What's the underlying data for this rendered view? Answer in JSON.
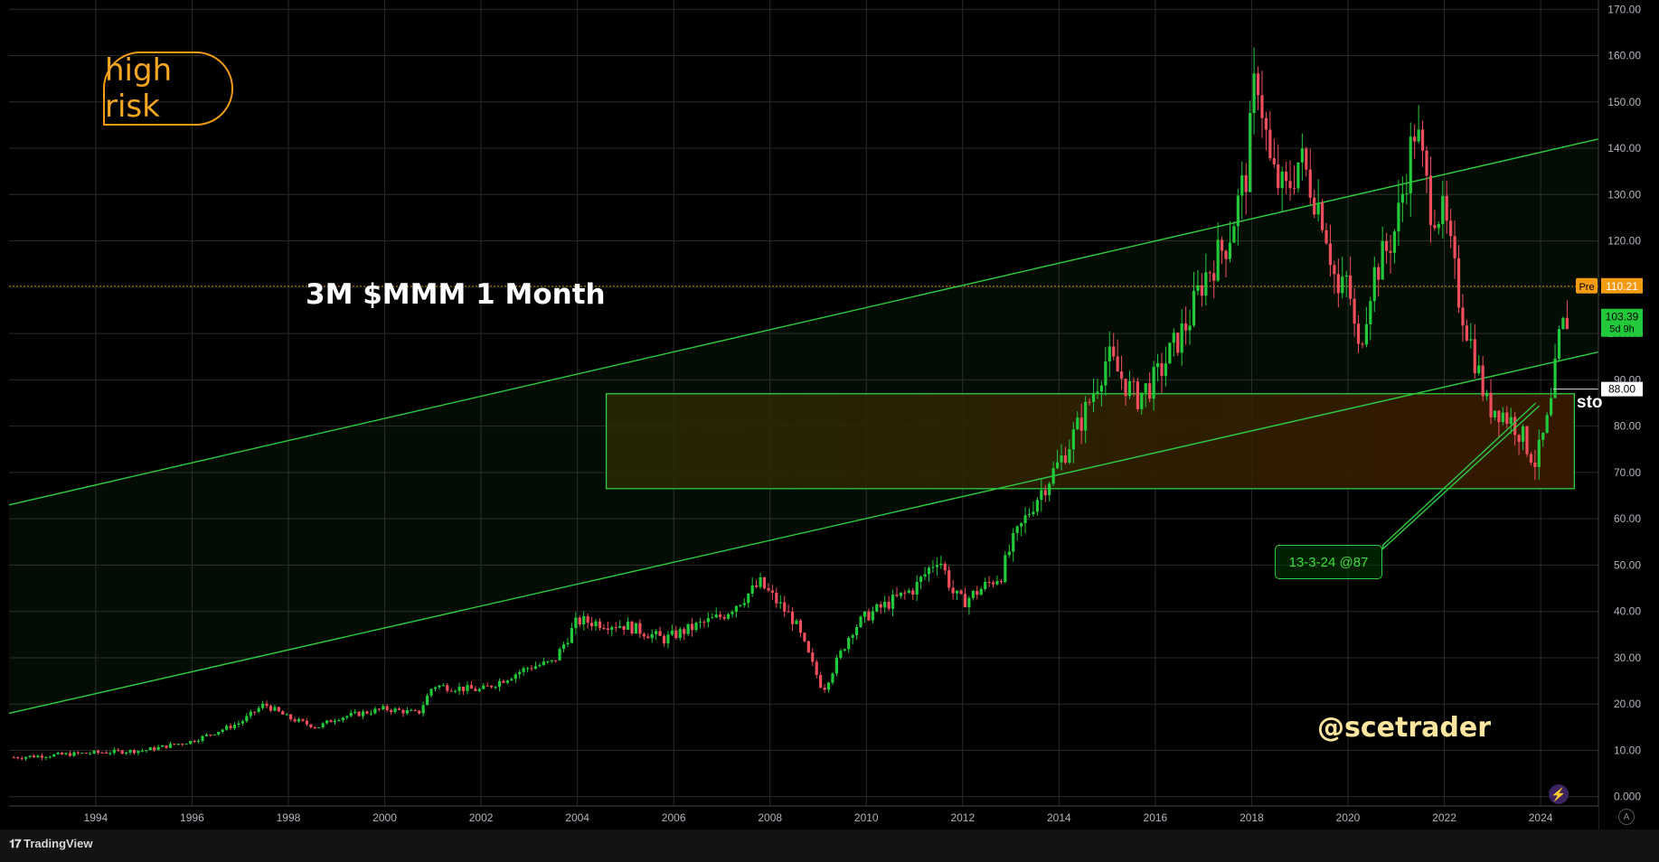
{
  "risk_badge": "high risk",
  "title": "3M $MMM 1 Month",
  "watermark": "@scetrader",
  "callout": "13-3-24 @87",
  "cut_label": "sto",
  "branding": "TradingView",
  "auto_button": "A",
  "colors": {
    "up": "#22c93a",
    "down": "#ef4f5c",
    "channel": "#2ecc40",
    "zone": "#3a3a00",
    "price_line": "#f39c12"
  },
  "chart_data": {
    "type": "candlestick",
    "title": "3M $MMM 1 Month",
    "xlabel": "",
    "ylabel": "",
    "xlim": [
      1992.2,
      2025.2
    ],
    "ylim": [
      -2,
      172
    ],
    "grid": true,
    "x_ticks": [
      "1994",
      "1996",
      "1998",
      "2000",
      "2002",
      "2004",
      "2006",
      "2008",
      "2010",
      "2012",
      "2014",
      "2016",
      "2018",
      "2020",
      "2022",
      "2024"
    ],
    "y_ticks": [
      "170.00",
      "160.00",
      "150.00",
      "140.00",
      "130.00",
      "120.00",
      "110.00",
      "100.00",
      "90.00",
      "80.00",
      "70.00",
      "60.00",
      "50.00",
      "40.00",
      "30.00",
      "20.00",
      "10.00",
      "0.000"
    ],
    "price_path": [
      [
        1992.3,
        8.5
      ],
      [
        1994,
        9.5
      ],
      [
        1995,
        10
      ],
      [
        1996,
        12
      ],
      [
        1997,
        16
      ],
      [
        1997.5,
        20
      ],
      [
        1998,
        17
      ],
      [
        1998.6,
        15
      ],
      [
        1999,
        17
      ],
      [
        2000,
        19
      ],
      [
        2000.7,
        18
      ],
      [
        2001,
        24
      ],
      [
        2002,
        23
      ],
      [
        2003,
        28
      ],
      [
        2003.5,
        29
      ],
      [
        2004,
        38
      ],
      [
        2005,
        37
      ],
      [
        2005.8,
        34
      ],
      [
        2006.5,
        37
      ],
      [
        2007,
        39
      ],
      [
        2007.8,
        46
      ],
      [
        2008.5,
        38
      ],
      [
        2009.1,
        23
      ],
      [
        2009.7,
        36
      ],
      [
        2010,
        39
      ],
      [
        2011,
        45
      ],
      [
        2011.5,
        52
      ],
      [
        2011.8,
        44
      ],
      [
        2012,
        42
      ],
      [
        2012.8,
        48
      ],
      [
        2013,
        54
      ],
      [
        2013.5,
        64
      ],
      [
        2014,
        72
      ],
      [
        2014.5,
        82
      ],
      [
        2015,
        95
      ],
      [
        2015.6,
        86
      ],
      [
        2016,
        90
      ],
      [
        2016.7,
        103
      ],
      [
        2017,
        112
      ],
      [
        2017.5,
        120
      ],
      [
        2017.9,
        135
      ],
      [
        2018.1,
        158
      ],
      [
        2018.4,
        135
      ],
      [
        2018.7,
        130
      ],
      [
        2019,
        138
      ],
      [
        2019.5,
        125
      ],
      [
        2019.8,
        108
      ],
      [
        2020,
        112
      ],
      [
        2020.2,
        95
      ],
      [
        2020.5,
        112
      ],
      [
        2020.8,
        118
      ],
      [
        2021,
        123
      ],
      [
        2021.4,
        145
      ],
      [
        2021.7,
        128
      ],
      [
        2022,
        125
      ],
      [
        2022.3,
        108
      ],
      [
        2022.7,
        92
      ],
      [
        2022.9,
        84
      ],
      [
        2023.1,
        84
      ],
      [
        2023.5,
        80
      ],
      [
        2023.9,
        72
      ],
      [
        2024.2,
        83
      ],
      [
        2024.4,
        100
      ],
      [
        2024.55,
        103
      ]
    ],
    "channel_upper": [
      [
        1992.2,
        63
      ],
      [
        2025.2,
        142
      ]
    ],
    "channel_lower": [
      [
        1992.2,
        18
      ],
      [
        2025.2,
        96
      ]
    ],
    "zone": {
      "x": [
        2004.6,
        2024.7
      ],
      "y": [
        66.5,
        87
      ]
    },
    "callout_target": [
      2023.9,
      85
    ],
    "price_labels": [
      {
        "tag": "Pre",
        "value": "110.21",
        "y": 110.21,
        "kind": "pre"
      },
      {
        "tag": "103.39",
        "sub": "5d 9h",
        "y": 103.39,
        "kind": "last"
      },
      {
        "tag": "88.00",
        "y": 88,
        "kind": "stop"
      }
    ]
  }
}
